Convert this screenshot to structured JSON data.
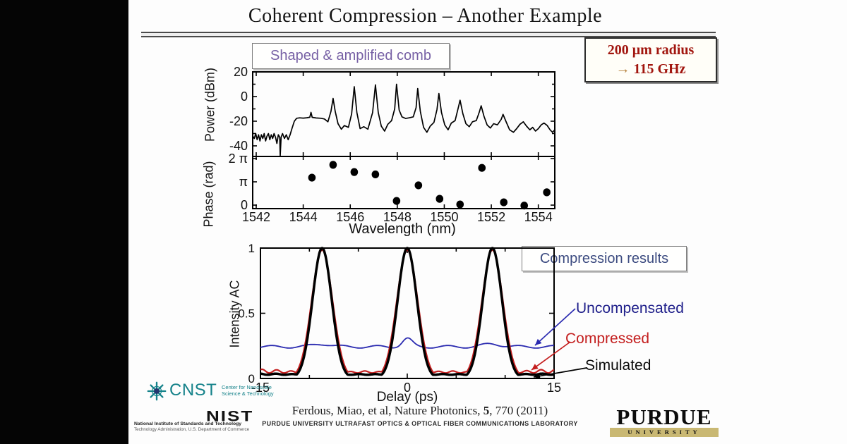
{
  "header": {
    "title": "Coherent Compression – Another Example"
  },
  "callout": {
    "line1": "200 μm radius",
    "arrow": "→",
    "value": "115 GHz"
  },
  "labels": {
    "comb_box": "Shaped & amplified comb",
    "results_box": "Compression results"
  },
  "footer": {
    "citation_pre": "Ferdous, Miao, et al, Nature Photonics, ",
    "citation_vol": "5",
    "citation_post": ", 770 (2011)",
    "lab": "PURDUE UNIVERSITY ULTRAFAST OPTICS & OPTICAL FIBER COMMUNICATIONS LABORATORY"
  },
  "logos": {
    "cnst": {
      "acronym": "CNST",
      "line1": "Center for Nanoscale",
      "line2": "Science & Technology",
      "color": "#15828a"
    },
    "nist": {
      "acronym": "NIST",
      "line1": "National Institute of Standards and Technology",
      "line2": "Technology Administration, U.S. Department of Commerce"
    },
    "purdue": {
      "name": "PURDUE",
      "sub": "UNIVERSITY",
      "band_color": "#c9b873"
    }
  },
  "chart_data": [
    {
      "type": "line",
      "id": "shaped-amplified-comb",
      "title": "Shaped & amplified comb",
      "xlabel": "Wavelength (nm)",
      "xlim": [
        1541.85,
        1554.7
      ],
      "x_major_ticks": [
        1542,
        1544,
        1546,
        1548,
        1550,
        1552,
        1554
      ],
      "grid": false,
      "panels": [
        {
          "ylabel": "Power (dBm)",
          "ylim": [
            -48.6,
            20
          ],
          "y_major_ticks": [
            20,
            0,
            -20,
            -40
          ],
          "y_minor_ticks": [
            10,
            -10,
            -30
          ]
        },
        {
          "ylabel": "Phase (rad)",
          "ylim": [
            -0.15,
            2.09
          ],
          "y_ticks": [
            {
              "v": 2,
              "label": "2 π"
            },
            {
              "v": 1,
              "label": "π"
            },
            {
              "v": 0,
              "label": "0"
            }
          ]
        }
      ],
      "line_color": "#000000",
      "dot_color": "#000000",
      "spectrum_points_nm_dbm": [
        [
          1541.85,
          -32
        ],
        [
          1541.92,
          -34
        ],
        [
          1541.98,
          -30
        ],
        [
          1542.04,
          -35
        ],
        [
          1542.1,
          -31
        ],
        [
          1542.16,
          -36
        ],
        [
          1542.22,
          -31
        ],
        [
          1542.28,
          -34
        ],
        [
          1542.34,
          -30
        ],
        [
          1542.4,
          -36
        ],
        [
          1542.46,
          -32
        ],
        [
          1542.52,
          -30
        ],
        [
          1542.58,
          -35
        ],
        [
          1542.64,
          -31
        ],
        [
          1542.7,
          -34
        ],
        [
          1542.76,
          -30
        ],
        [
          1542.82,
          -33
        ],
        [
          1542.88,
          -38
        ],
        [
          1542.94,
          -31
        ],
        [
          1543.0,
          -33
        ],
        [
          1543.02,
          -48
        ],
        [
          1543.06,
          -33
        ],
        [
          1543.12,
          -30
        ],
        [
          1543.2,
          -34
        ],
        [
          1543.28,
          -31
        ],
        [
          1543.36,
          -35
        ],
        [
          1543.44,
          -31
        ],
        [
          1543.52,
          -26
        ],
        [
          1543.62,
          -20
        ],
        [
          1543.72,
          -17.6
        ],
        [
          1543.85,
          -17.3
        ],
        [
          1544.0,
          -17.5
        ],
        [
          1544.15,
          -17.2
        ],
        [
          1544.28,
          -16.8
        ],
        [
          1544.33,
          -12.8
        ],
        [
          1544.38,
          -16.9
        ],
        [
          1544.55,
          -17.4
        ],
        [
          1544.75,
          -17.6
        ],
        [
          1544.9,
          -18.2
        ],
        [
          1545.05,
          -20.5
        ],
        [
          1545.18,
          -12
        ],
        [
          1545.27,
          -1.5
        ],
        [
          1545.36,
          -12
        ],
        [
          1545.48,
          -22
        ],
        [
          1545.62,
          -26.5
        ],
        [
          1545.75,
          -23.5
        ],
        [
          1545.92,
          -25
        ],
        [
          1546.06,
          -14
        ],
        [
          1546.17,
          8
        ],
        [
          1546.28,
          -13
        ],
        [
          1546.42,
          -26
        ],
        [
          1546.58,
          -24.5
        ],
        [
          1546.75,
          -26.5
        ],
        [
          1546.95,
          -13
        ],
        [
          1547.07,
          9.5
        ],
        [
          1547.19,
          -13
        ],
        [
          1547.32,
          -24
        ],
        [
          1547.46,
          -28
        ],
        [
          1547.6,
          -22.5
        ],
        [
          1547.76,
          -19.5
        ],
        [
          1547.89,
          -10
        ],
        [
          1547.97,
          10
        ],
        [
          1548.08,
          -11
        ],
        [
          1548.2,
          -16.5
        ],
        [
          1548.36,
          -17.8
        ],
        [
          1548.52,
          -17.2
        ],
        [
          1548.68,
          -16.5
        ],
        [
          1548.8,
          -9
        ],
        [
          1548.87,
          6.5
        ],
        [
          1548.98,
          -12
        ],
        [
          1549.12,
          -25
        ],
        [
          1549.26,
          -29
        ],
        [
          1549.4,
          -24
        ],
        [
          1549.56,
          -21
        ],
        [
          1549.69,
          -10.5
        ],
        [
          1549.77,
          2.5
        ],
        [
          1549.88,
          -13
        ],
        [
          1550.02,
          -23
        ],
        [
          1550.16,
          -27
        ],
        [
          1550.3,
          -21.5
        ],
        [
          1550.46,
          -19.5
        ],
        [
          1550.59,
          -9.5
        ],
        [
          1550.67,
          -3
        ],
        [
          1550.79,
          -14
        ],
        [
          1550.92,
          -22
        ],
        [
          1551.06,
          -24.5
        ],
        [
          1551.2,
          -20.5
        ],
        [
          1551.36,
          -19.5
        ],
        [
          1551.49,
          -12.5
        ],
        [
          1551.57,
          -7.5
        ],
        [
          1551.69,
          -16
        ],
        [
          1551.82,
          -23
        ],
        [
          1551.96,
          -25.5
        ],
        [
          1552.1,
          -22
        ],
        [
          1552.26,
          -23
        ],
        [
          1552.42,
          -18.5
        ],
        [
          1552.5,
          -14.5
        ],
        [
          1552.62,
          -20
        ],
        [
          1552.78,
          -27
        ],
        [
          1552.94,
          -29
        ],
        [
          1553.08,
          -26
        ],
        [
          1553.22,
          -22.5
        ],
        [
          1553.36,
          -20.5
        ],
        [
          1553.5,
          -24
        ],
        [
          1553.64,
          -27
        ],
        [
          1553.76,
          -25
        ],
        [
          1553.88,
          -28
        ],
        [
          1554.0,
          -26
        ],
        [
          1554.12,
          -23
        ],
        [
          1554.24,
          -21.5
        ],
        [
          1554.38,
          -23.5
        ],
        [
          1554.5,
          -27
        ],
        [
          1554.6,
          -29
        ],
        [
          1554.7,
          -27
        ]
      ],
      "phase_points_nm_pi": [
        [
          1544.37,
          1.18
        ],
        [
          1545.27,
          1.73
        ],
        [
          1546.17,
          1.42
        ],
        [
          1547.07,
          1.32
        ],
        [
          1547.97,
          0.18
        ],
        [
          1548.9,
          0.85
        ],
        [
          1549.8,
          0.27
        ],
        [
          1550.67,
          0.03
        ],
        [
          1551.6,
          1.6
        ],
        [
          1552.53,
          0.12
        ],
        [
          1553.4,
          -0.02
        ],
        [
          1554.36,
          0.55
        ]
      ]
    },
    {
      "type": "line",
      "id": "intensity-autocorrelation",
      "title": "Compression results",
      "xlabel": "Delay (ps)",
      "ylabel": "Intensity AC",
      "xlim": [
        -15,
        15
      ],
      "ylim": [
        0,
        1
      ],
      "x_major_ticks": [
        -15,
        0,
        15
      ],
      "x_minor_ticks": [
        -10,
        -5,
        5,
        10
      ],
      "y_ticks": [
        {
          "v": 1,
          "label": "1"
        },
        {
          "v": 0.5,
          "label": "0.5"
        },
        {
          "v": 0,
          "label": "0"
        }
      ],
      "grid": false,
      "pulse_centers_ps": [
        -8.7,
        0,
        8.7
      ],
      "pulse_period_ps": 8.7,
      "series": [
        {
          "name": "Uncompensated",
          "color": "#2a2ab0",
          "label_color": "#1f1f8a",
          "model": "flat",
          "stroke_width": 1.8,
          "base": 0.243,
          "wiggle_amp": 0.01,
          "wiggle_period_ps": 3.6,
          "center_bump": {
            "amp": 0.062,
            "sigma": 0.5
          },
          "side_bump": {
            "amp": 0.022,
            "sigma": 0.9
          }
        },
        {
          "name": "Compressed",
          "color": "#c41e1e",
          "label_color": "#c42020",
          "model": "pulses",
          "stroke_width": 2.2,
          "base": 0.042,
          "height": 0.985,
          "sigma_ps": 1.07,
          "ripple_amp": 0.03,
          "ripple_period_ps": 1.5
        },
        {
          "name": "Simulated",
          "color": "#000000",
          "label_color": "#0a0a0a",
          "model": "pulses",
          "stroke_width": 3.5,
          "base": 0.028,
          "height": 1.0,
          "sigma_ps": 0.98,
          "ripple_amp": 0.01,
          "ripple_period_ps": 1.7
        }
      ]
    }
  ]
}
